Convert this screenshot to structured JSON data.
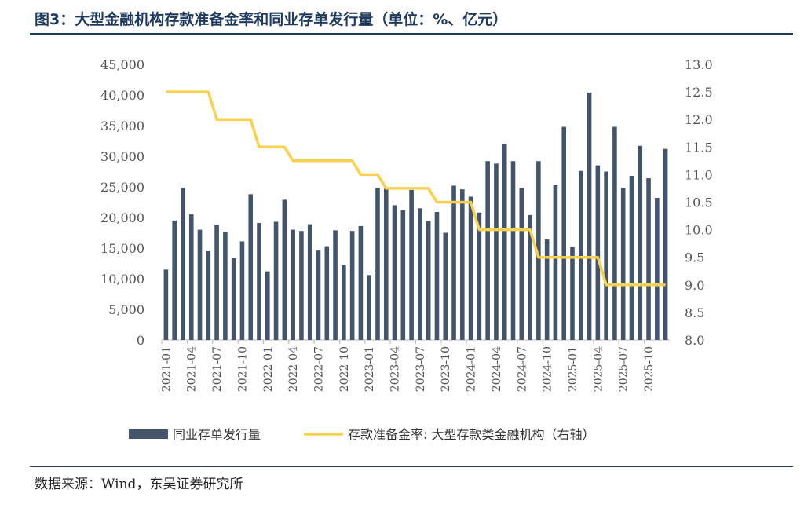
{
  "title": "图3：大型金融机构存款准备金率和同业存单发行量（单位：%、亿元）",
  "source": "数据来源：Wind，东吴证券研究所",
  "chart_data": {
    "type": "bar+line",
    "categories": [
      "2021-01",
      "2021-02",
      "2021-03",
      "2021-04",
      "2021-05",
      "2021-06",
      "2021-07",
      "2021-08",
      "2021-09",
      "2021-10",
      "2021-11",
      "2021-12",
      "2022-01",
      "2022-02",
      "2022-03",
      "2022-04",
      "2022-05",
      "2022-06",
      "2022-07",
      "2022-08",
      "2022-09",
      "2022-10",
      "2022-11",
      "2022-12",
      "2023-01",
      "2023-02",
      "2023-03",
      "2023-04",
      "2023-05",
      "2023-06",
      "2023-07",
      "2023-08",
      "2023-09",
      "2023-10",
      "2023-11",
      "2023-12",
      "2024-01",
      "2024-02",
      "2024-03",
      "2024-04",
      "2024-05",
      "2024-06",
      "2024-07",
      "2024-08",
      "2024-09",
      "2024-10",
      "2024-11",
      "2024-12",
      "2025-01",
      "2025-02",
      "2025-03",
      "2025-04",
      "2025-05",
      "2025-06",
      "2025-07",
      "2025-08",
      "2025-09",
      "2025-10",
      "2025-11",
      "2025-12"
    ],
    "x_tick_labels": [
      "2021-01",
      "2021-04",
      "2021-07",
      "2021-10",
      "2022-01",
      "2022-04",
      "2022-07",
      "2022-10",
      "2023-01",
      "2023-04",
      "2023-07",
      "2023-10",
      "2024-01",
      "2024-04",
      "2024-07",
      "2024-10",
      "2025-01",
      "2025-04",
      "2025-07",
      "2025-10"
    ],
    "series": [
      {
        "name": "同业存单发行量",
        "type": "bar",
        "axis": "left",
        "color": "#44546a",
        "values": [
          11500,
          19500,
          24800,
          20500,
          18000,
          14500,
          18800,
          17600,
          13400,
          16100,
          23800,
          19100,
          11200,
          19300,
          22900,
          18000,
          17800,
          18900,
          14600,
          15300,
          17900,
          12200,
          17800,
          18600,
          10600,
          24800,
          24700,
          22000,
          21200,
          24500,
          21500,
          19400,
          20900,
          17500,
          25200,
          24600,
          23400,
          20800,
          29200,
          28800,
          32000,
          29200,
          24800,
          20400,
          29200,
          16400,
          25300,
          34800,
          15200,
          27600,
          40400,
          28500,
          27500,
          34800,
          24800,
          26800,
          31700,
          26400,
          23200,
          31200
        ]
      },
      {
        "name": "存款准备金率: 大型存款类金融机构（右轴）",
        "type": "line",
        "axis": "right",
        "color": "#f8d053",
        "values": [
          12.5,
          12.5,
          12.5,
          12.5,
          12.5,
          12.5,
          12.0,
          12.0,
          12.0,
          12.0,
          12.0,
          11.5,
          11.5,
          11.5,
          11.5,
          11.25,
          11.25,
          11.25,
          11.25,
          11.25,
          11.25,
          11.25,
          11.25,
          11.0,
          11.0,
          11.0,
          10.75,
          10.75,
          10.75,
          10.75,
          10.75,
          10.75,
          10.5,
          10.5,
          10.5,
          10.5,
          10.5,
          10.0,
          10.0,
          10.0,
          10.0,
          10.0,
          10.0,
          10.0,
          9.5,
          9.5,
          9.5,
          9.5,
          9.5,
          9.5,
          9.5,
          9.5,
          9.0,
          9.0,
          9.0,
          9.0,
          9.0,
          9.0,
          9.0,
          9.0
        ]
      }
    ],
    "y_left": {
      "range": [
        0,
        45000
      ],
      "ticks": [
        "0",
        "5,000",
        "10,000",
        "15,000",
        "20,000",
        "25,000",
        "30,000",
        "35,000",
        "40,000",
        "45,000"
      ]
    },
    "y_right": {
      "range": [
        8.0,
        13.0
      ],
      "ticks": [
        "8.0",
        "8.5",
        "9.0",
        "9.5",
        "10.0",
        "10.5",
        "11.0",
        "11.5",
        "12.0",
        "12.5",
        "13.0"
      ]
    },
    "grid": false,
    "legend": "bottom"
  }
}
